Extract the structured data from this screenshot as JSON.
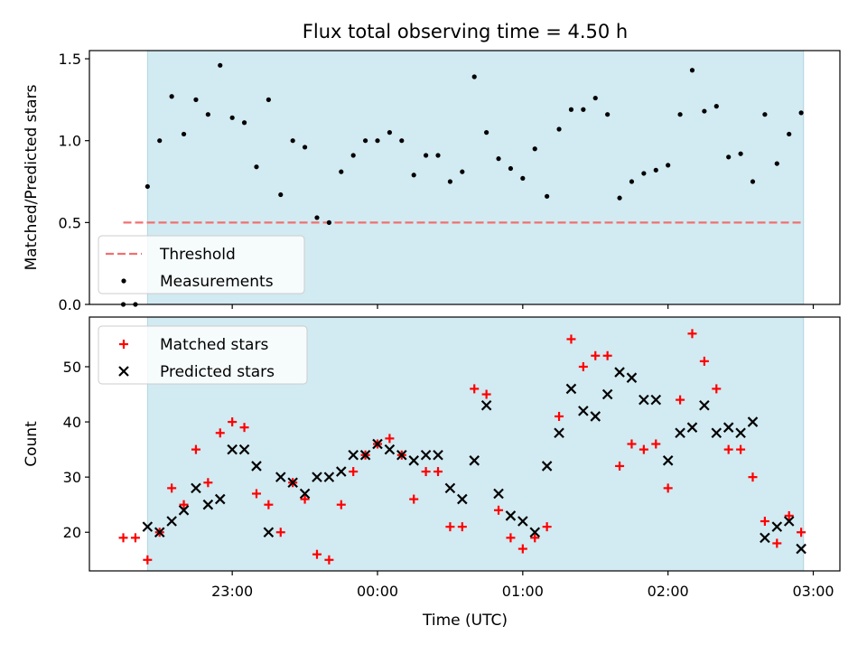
{
  "title": "Flux total observing time = 4.50 h",
  "colors": {
    "shade": "#add8e6",
    "threshold": "#f07070",
    "measurement": "#000000",
    "matched": "#ff0000",
    "predicted": "#000000"
  },
  "x_ticks": [
    {
      "t": 0,
      "label": "23:00"
    },
    {
      "t": 60,
      "label": "00:00"
    },
    {
      "t": 120,
      "label": "01:00"
    },
    {
      "t": 180,
      "label": "02:00"
    },
    {
      "t": 240,
      "label": "03:00"
    }
  ],
  "xlabel": "Time (UTC)",
  "chart_data": [
    {
      "type": "scatter",
      "xlim_minutes_from_2300": [
        -59,
        251
      ],
      "shaded_span_minutes_from_2300": [
        -35,
        236
      ],
      "ylabel": "Matched/Predicted stars",
      "ylim": [
        0,
        1.55
      ],
      "y_ticks": [
        0.0,
        0.5,
        1.0,
        1.5
      ],
      "y_tick_labels": [
        "0.0",
        "0.5",
        "1.0",
        "1.5"
      ],
      "threshold": {
        "name": "Threshold",
        "value": 0.5,
        "x_range": [
          -45,
          236
        ]
      },
      "legend": [
        "Threshold",
        "Measurements"
      ],
      "series": [
        {
          "name": "Measurements",
          "x": [
            -45,
            -40,
            -35,
            -30,
            -25,
            -20,
            -15,
            -10,
            -5,
            0,
            5,
            10,
            15,
            20,
            25,
            30,
            35,
            40,
            45,
            50,
            55,
            60,
            65,
            70,
            75,
            80,
            85,
            90,
            95,
            100,
            105,
            110,
            115,
            120,
            125,
            130,
            135,
            140,
            145,
            150,
            155,
            160,
            165,
            170,
            175,
            180,
            185,
            190,
            195,
            200,
            205,
            210,
            215,
            220,
            225,
            230,
            235
          ],
          "values": [
            0.0,
            0.0,
            0.72,
            1.0,
            1.27,
            1.04,
            1.25,
            1.16,
            1.46,
            1.14,
            1.11,
            0.84,
            1.25,
            0.67,
            1.0,
            0.96,
            0.53,
            0.5,
            0.81,
            0.91,
            1.0,
            1.0,
            1.05,
            1.0,
            0.79,
            0.91,
            0.91,
            0.75,
            0.81,
            1.39,
            1.05,
            0.89,
            0.83,
            0.77,
            0.95,
            0.66,
            1.07,
            1.19,
            1.19,
            1.26,
            1.16,
            0.65,
            0.75,
            0.8,
            0.82,
            0.85,
            1.16,
            1.43,
            1.18,
            1.21,
            0.9,
            0.92,
            0.75,
            1.16,
            0.86,
            1.04,
            1.17
          ]
        }
      ]
    },
    {
      "type": "scatter",
      "xlim_minutes_from_2300": [
        -59,
        251
      ],
      "shaded_span_minutes_from_2300": [
        -35,
        236
      ],
      "ylabel": "Count",
      "ylim": [
        13,
        59
      ],
      "y_ticks": [
        20,
        30,
        40,
        50
      ],
      "y_tick_labels": [
        "20",
        "30",
        "40",
        "50"
      ],
      "legend": [
        "Matched stars",
        "Predicted stars"
      ],
      "series": [
        {
          "name": "Matched stars",
          "x": [
            -45,
            -40,
            -35,
            -30,
            -25,
            -20,
            -15,
            -10,
            -5,
            0,
            5,
            10,
            15,
            20,
            25,
            30,
            35,
            40,
            45,
            50,
            55,
            60,
            65,
            70,
            75,
            80,
            85,
            90,
            95,
            100,
            105,
            110,
            115,
            120,
            125,
            130,
            135,
            140,
            145,
            150,
            155,
            160,
            165,
            170,
            175,
            180,
            185,
            190,
            195,
            200,
            205,
            210,
            215,
            220,
            225,
            230,
            235
          ],
          "values": [
            19,
            19,
            15,
            20,
            28,
            25,
            35,
            29,
            38,
            40,
            39,
            27,
            25,
            20,
            29,
            26,
            16,
            15,
            25,
            31,
            34,
            36,
            37,
            34,
            26,
            31,
            31,
            21,
            21,
            46,
            45,
            24,
            19,
            17,
            19,
            21,
            41,
            55,
            50,
            52,
            52,
            32,
            36,
            35,
            36,
            28,
            44,
            56,
            51,
            46,
            35,
            35,
            30,
            22,
            18,
            23,
            20
          ]
        },
        {
          "name": "Predicted stars",
          "x": [
            -35,
            -30,
            -25,
            -20,
            -15,
            -10,
            -5,
            0,
            5,
            10,
            15,
            20,
            25,
            30,
            35,
            40,
            45,
            50,
            55,
            60,
            65,
            70,
            75,
            80,
            85,
            90,
            95,
            100,
            105,
            110,
            115,
            120,
            125,
            130,
            135,
            140,
            145,
            150,
            155,
            160,
            165,
            170,
            175,
            180,
            185,
            190,
            195,
            200,
            205,
            210,
            215,
            220,
            225,
            230,
            235
          ],
          "values": [
            21,
            20,
            22,
            24,
            28,
            25,
            26,
            35,
            35,
            32,
            20,
            30,
            29,
            27,
            30,
            30,
            31,
            34,
            34,
            36,
            35,
            34,
            33,
            34,
            34,
            28,
            26,
            33,
            43,
            27,
            23,
            22,
            20,
            32,
            38,
            46,
            42,
            41,
            45,
            49,
            48,
            44,
            44,
            33,
            38,
            39,
            43,
            38,
            39,
            38,
            40,
            19,
            21,
            22,
            17
          ]
        }
      ]
    }
  ]
}
